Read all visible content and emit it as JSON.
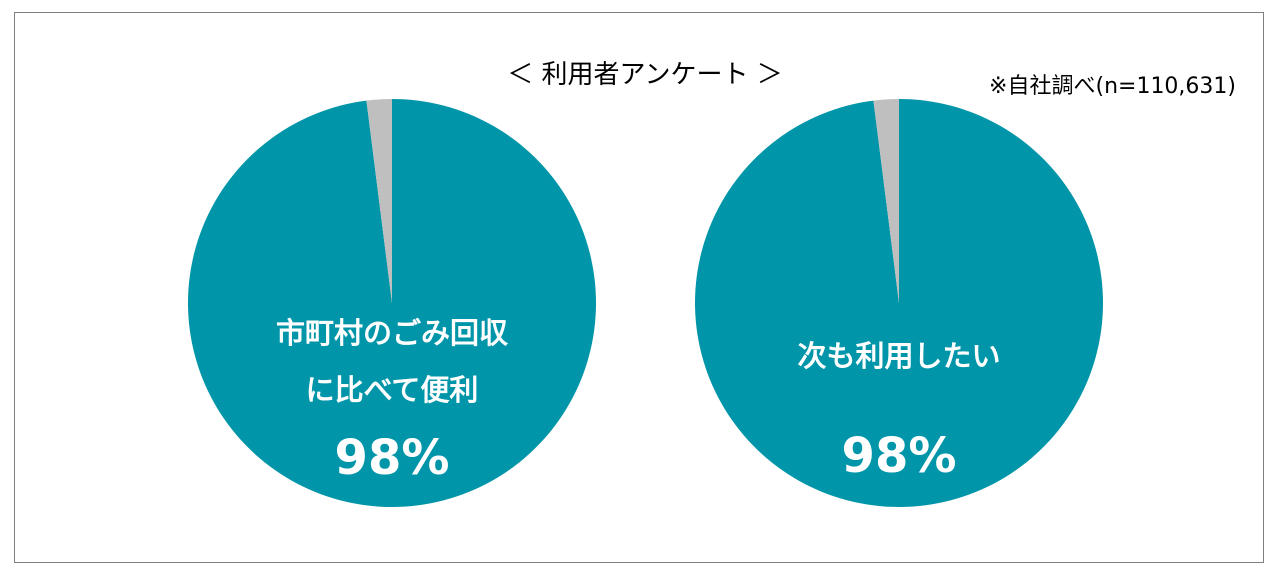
{
  "title": "＜ 利用者アンケート ＞",
  "note": "※自社調べ(n=110,631)",
  "chart_data": [
    {
      "type": "pie",
      "categories": [
        "市町村のごみ回収\nに比べて便利",
        null
      ],
      "values": [
        98,
        2
      ],
      "value_labels": [
        "98%",
        null
      ],
      "colors": [
        "#0095a8",
        "#bfbfbf"
      ]
    },
    {
      "type": "pie",
      "categories": [
        "次も利用したい",
        null
      ],
      "values": [
        98,
        2
      ],
      "value_labels": [
        "98%",
        null
      ],
      "colors": [
        "#0095a8",
        "#bfbfbf"
      ]
    }
  ]
}
